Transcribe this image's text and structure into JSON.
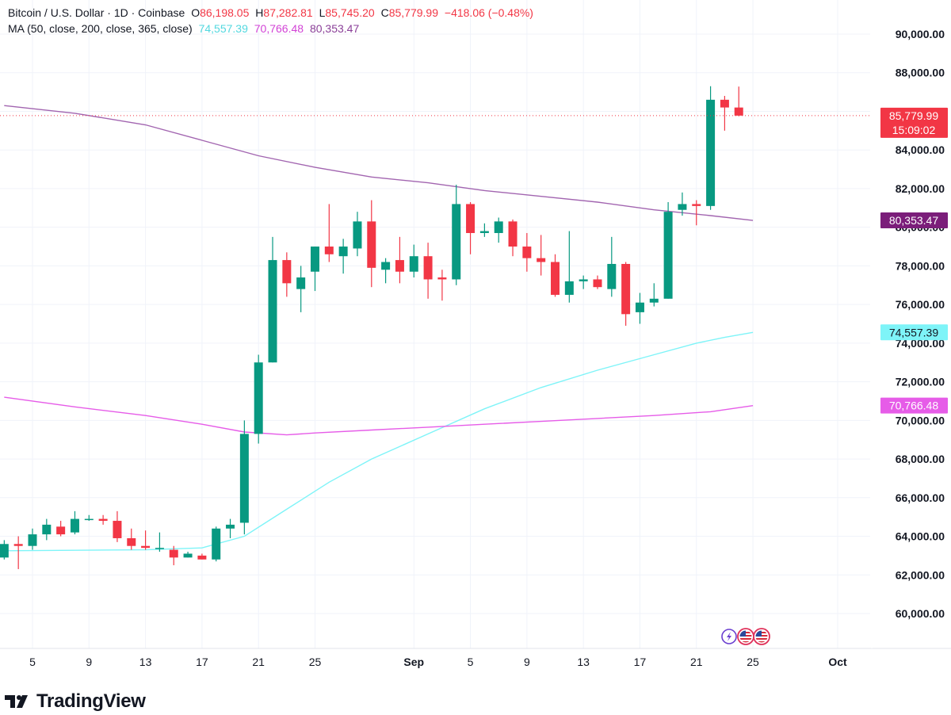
{
  "legend": {
    "symbol": "Bitcoin / U.S. Dollar · 1D · Coinbase",
    "o_label": "O",
    "o_value": "86,198.05",
    "h_label": "H",
    "h_value": "87,282.81",
    "l_label": "L",
    "l_value": "85,745.20",
    "c_label": "C",
    "c_value": "85,779.99",
    "change": "−418.06 (−0.48%)",
    "ma_label": "MA (50, close, 200, close, 365, close)",
    "ma_values": [
      "74,557.39",
      "70,766.48",
      "80,353.47"
    ]
  },
  "price_badge": {
    "value": "85,779.99",
    "countdown": "15:09:02"
  },
  "brand": {
    "name": "TradingView"
  },
  "colors": {
    "up": "#089981",
    "down": "#f23645",
    "ma50": "#7ef4f8",
    "ma200": "#e65ce8",
    "ma365": "#a265b0",
    "ma365_badge": "#7b1e7a",
    "grid": "#f0f3fa",
    "text": "#131722",
    "price_line": "#f23645"
  },
  "icons": [
    "lightning-icon",
    "us-flag-icon",
    "us-flag-icon"
  ],
  "chart_data": {
    "type": "candlestick",
    "title": "Bitcoin / U.S. Dollar · 1D · Coinbase",
    "ylim": [
      59000,
      91000
    ],
    "y_ticks": [
      60000,
      62000,
      64000,
      66000,
      68000,
      70000,
      72000,
      74000,
      76000,
      78000,
      80000,
      82000,
      84000,
      86000,
      88000,
      90000
    ],
    "y_tick_labels": [
      "60,000.00",
      "62,000.00",
      "64,000.00",
      "66,000.00",
      "68,000.00",
      "70,000.00",
      "72,000.00",
      "74,000.00",
      "76,000.00",
      "78,000.00",
      "80,000.00",
      "82,000.00",
      "84,000.00",
      "86,000.00",
      "88,000.00",
      "90,000.00"
    ],
    "x_ticks": [
      {
        "label": "5",
        "index": 2
      },
      {
        "label": "9",
        "index": 6
      },
      {
        "label": "13",
        "index": 10
      },
      {
        "label": "17",
        "index": 14
      },
      {
        "label": "21",
        "index": 18
      },
      {
        "label": "25",
        "index": 22
      },
      {
        "label": "Sep",
        "index": 29
      },
      {
        "label": "5",
        "index": 33
      },
      {
        "label": "9",
        "index": 37
      },
      {
        "label": "13",
        "index": 41
      },
      {
        "label": "17",
        "index": 45
      },
      {
        "label": "21",
        "index": 49
      },
      {
        "label": "25",
        "index": 53
      },
      {
        "label": "Oct",
        "index": 59
      }
    ],
    "x_index_range": [
      -0.3,
      61.3
    ],
    "candles": [
      {
        "o": 62900,
        "h": 63800,
        "l": 62800,
        "c": 63600
      },
      {
        "o": 63600,
        "h": 64000,
        "l": 62300,
        "c": 63500
      },
      {
        "o": 63500,
        "h": 64400,
        "l": 63300,
        "c": 64100
      },
      {
        "o": 64100,
        "h": 64900,
        "l": 63800,
        "c": 64600
      },
      {
        "o": 64500,
        "h": 64800,
        "l": 64000,
        "c": 64100
      },
      {
        "o": 64200,
        "h": 65300,
        "l": 64100,
        "c": 64900
      },
      {
        "o": 64900,
        "h": 65100,
        "l": 64800,
        "c": 64900
      },
      {
        "o": 64900,
        "h": 65100,
        "l": 64600,
        "c": 64800
      },
      {
        "o": 64800,
        "h": 65300,
        "l": 63700,
        "c": 63900
      },
      {
        "o": 63900,
        "h": 64400,
        "l": 63300,
        "c": 63500
      },
      {
        "o": 63500,
        "h": 64300,
        "l": 63300,
        "c": 63400
      },
      {
        "o": 63400,
        "h": 64200,
        "l": 63200,
        "c": 63400
      },
      {
        "o": 63300,
        "h": 63500,
        "l": 62500,
        "c": 62900
      },
      {
        "o": 62900,
        "h": 63200,
        "l": 62900,
        "c": 63100
      },
      {
        "o": 63000,
        "h": 63100,
        "l": 62800,
        "c": 62800
      },
      {
        "o": 62800,
        "h": 64500,
        "l": 62700,
        "c": 64400
      },
      {
        "o": 64400,
        "h": 64900,
        "l": 63900,
        "c": 64600
      },
      {
        "o": 64700,
        "h": 70000,
        "l": 64100,
        "c": 69300
      },
      {
        "o": 69300,
        "h": 73400,
        "l": 68800,
        "c": 73000
      },
      {
        "o": 73000,
        "h": 79500,
        "l": 73000,
        "c": 78300
      },
      {
        "o": 78300,
        "h": 78700,
        "l": 76400,
        "c": 77100
      },
      {
        "o": 76800,
        "h": 78000,
        "l": 75600,
        "c": 77400
      },
      {
        "o": 77700,
        "h": 79000,
        "l": 76700,
        "c": 79000
      },
      {
        "o": 79000,
        "h": 81200,
        "l": 78200,
        "c": 78600
      },
      {
        "o": 78500,
        "h": 79400,
        "l": 77600,
        "c": 79000
      },
      {
        "o": 78900,
        "h": 80800,
        "l": 78500,
        "c": 80300
      },
      {
        "o": 80300,
        "h": 81400,
        "l": 76900,
        "c": 77900
      },
      {
        "o": 77800,
        "h": 78400,
        "l": 77100,
        "c": 78200
      },
      {
        "o": 78300,
        "h": 79500,
        "l": 77100,
        "c": 77700
      },
      {
        "o": 77700,
        "h": 79100,
        "l": 77400,
        "c": 78500
      },
      {
        "o": 78500,
        "h": 79200,
        "l": 76300,
        "c": 77300
      },
      {
        "o": 77400,
        "h": 77800,
        "l": 76200,
        "c": 77300
      },
      {
        "o": 77300,
        "h": 82200,
        "l": 77000,
        "c": 81200
      },
      {
        "o": 81200,
        "h": 81300,
        "l": 78600,
        "c": 79700
      },
      {
        "o": 79700,
        "h": 80200,
        "l": 79500,
        "c": 79800
      },
      {
        "o": 79700,
        "h": 80500,
        "l": 79200,
        "c": 80300
      },
      {
        "o": 80300,
        "h": 80400,
        "l": 78500,
        "c": 79000
      },
      {
        "o": 79000,
        "h": 79700,
        "l": 77700,
        "c": 78400
      },
      {
        "o": 78400,
        "h": 79600,
        "l": 77500,
        "c": 78200
      },
      {
        "o": 78200,
        "h": 78600,
        "l": 76400,
        "c": 76500
      },
      {
        "o": 76500,
        "h": 79800,
        "l": 76100,
        "c": 77200
      },
      {
        "o": 77200,
        "h": 77500,
        "l": 76800,
        "c": 77300
      },
      {
        "o": 77300,
        "h": 77500,
        "l": 76800,
        "c": 76900
      },
      {
        "o": 76800,
        "h": 79500,
        "l": 76400,
        "c": 78100
      },
      {
        "o": 78100,
        "h": 78200,
        "l": 74900,
        "c": 75500
      },
      {
        "o": 75600,
        "h": 76600,
        "l": 75000,
        "c": 76100
      },
      {
        "o": 76100,
        "h": 77100,
        "l": 75900,
        "c": 76300
      },
      {
        "o": 76300,
        "h": 81300,
        "l": 76300,
        "c": 80800
      },
      {
        "o": 80900,
        "h": 81800,
        "l": 80600,
        "c": 81200
      },
      {
        "o": 81200,
        "h": 81400,
        "l": 80100,
        "c": 81100
      },
      {
        "o": 81100,
        "h": 87300,
        "l": 80900,
        "c": 86600
      },
      {
        "o": 86600,
        "h": 86800,
        "l": 85000,
        "c": 86200
      },
      {
        "o": 86198.05,
        "h": 87282.81,
        "l": 85745.2,
        "c": 85779.99
      }
    ],
    "series": [
      {
        "name": "MA 50",
        "x": [
          0,
          10,
          14,
          17,
          20,
          23,
          26,
          30,
          34,
          38,
          42,
          46,
          49,
          51,
          53
        ],
        "y": [
          63250,
          63300,
          63400,
          64000,
          65400,
          66800,
          68000,
          69300,
          70600,
          71700,
          72600,
          73400,
          74000,
          74300,
          74557.39
        ]
      },
      {
        "name": "MA 200",
        "x": [
          0,
          5,
          10,
          14,
          17,
          20,
          22,
          26,
          30,
          34,
          38,
          42,
          46,
          50,
          53
        ],
        "y": [
          71200,
          70700,
          70250,
          69800,
          69400,
          69250,
          69350,
          69500,
          69650,
          69800,
          69950,
          70100,
          70250,
          70450,
          70766.48
        ]
      },
      {
        "name": "MA 365",
        "x": [
          0,
          5,
          10,
          14,
          18,
          22,
          26,
          30,
          34,
          38,
          42,
          46,
          50,
          53
        ],
        "y": [
          86300,
          85900,
          85300,
          84500,
          83700,
          83100,
          82600,
          82300,
          81900,
          81600,
          81300,
          80900,
          80600,
          80353.47
        ]
      }
    ],
    "last_price": 85779.99,
    "axis_badges": [
      {
        "value": "74,557.39",
        "y": 74557.39,
        "series": "MA 50"
      },
      {
        "value": "70,766.48",
        "y": 70766.48,
        "series": "MA 200"
      },
      {
        "value": "80,353.47",
        "y": 80353.47,
        "series": "MA 365"
      }
    ]
  }
}
